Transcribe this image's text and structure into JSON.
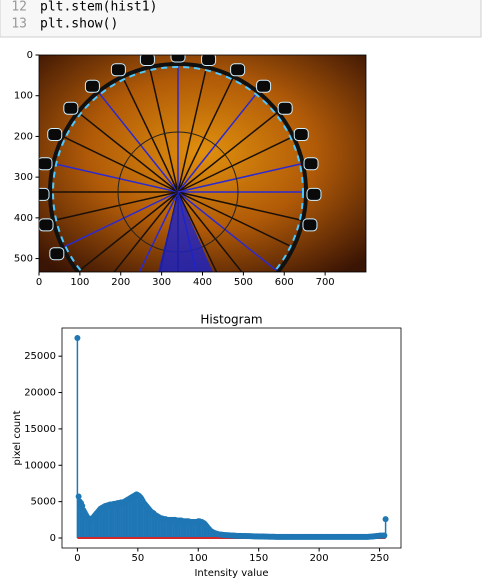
{
  "code": {
    "lines": [
      {
        "number": "12",
        "text": "plt.stem(hist1)"
      },
      {
        "number": "13",
        "text": "plt.show()"
      }
    ]
  },
  "chart_data": [
    {
      "type": "image",
      "xlim": [
        0,
        800
      ],
      "ylim": [
        533,
        0
      ],
      "xticks": [
        0,
        100,
        200,
        300,
        400,
        500,
        600,
        700
      ],
      "yticks": [
        0,
        100,
        200,
        300,
        400,
        500
      ]
    },
    {
      "type": "stem",
      "title": "Histogram",
      "x_label": "Intensity value",
      "y_label": "pixel count",
      "color": "#1f77b4",
      "baseline_color": "#d62728",
      "xlim": [
        -12.75,
        267.75
      ],
      "ylim": [
        -1375,
        28875
      ],
      "xticks": [
        0,
        50,
        100,
        150,
        200,
        250
      ],
      "yticks": [
        0,
        5000,
        10000,
        15000,
        20000,
        25000
      ],
      "x": [
        0,
        1,
        2,
        3,
        4,
        5,
        6,
        7,
        8,
        9,
        10,
        11,
        12,
        13,
        14,
        15,
        16,
        17,
        18,
        19,
        20,
        21,
        22,
        23,
        24,
        25,
        26,
        27,
        28,
        29,
        30,
        31,
        32,
        33,
        34,
        35,
        36,
        37,
        38,
        39,
        40,
        41,
        42,
        43,
        44,
        45,
        46,
        47,
        48,
        49,
        50,
        51,
        52,
        53,
        54,
        55,
        56,
        57,
        58,
        59,
        60,
        61,
        62,
        63,
        64,
        65,
        66,
        67,
        68,
        69,
        70,
        71,
        72,
        73,
        74,
        75,
        76,
        77,
        78,
        79,
        80,
        81,
        82,
        83,
        84,
        85,
        86,
        87,
        88,
        89,
        90,
        91,
        92,
        93,
        94,
        95,
        96,
        97,
        98,
        99,
        100,
        101,
        102,
        103,
        104,
        105,
        106,
        107,
        108,
        109,
        110,
        111,
        112,
        113,
        114,
        115,
        116,
        117,
        118,
        119,
        120,
        121,
        122,
        123,
        124,
        125,
        126,
        127,
        128,
        129,
        130,
        131,
        132,
        133,
        134,
        135,
        136,
        137,
        138,
        139,
        140,
        141,
        142,
        143,
        144,
        145,
        146,
        147,
        148,
        149,
        150,
        151,
        152,
        153,
        154,
        155,
        156,
        157,
        158,
        159,
        160,
        161,
        162,
        163,
        164,
        165,
        166,
        167,
        168,
        169,
        170,
        171,
        172,
        173,
        174,
        175,
        176,
        177,
        178,
        179,
        180,
        181,
        182,
        183,
        184,
        185,
        186,
        187,
        188,
        189,
        190,
        191,
        192,
        193,
        194,
        195,
        196,
        197,
        198,
        199,
        200,
        201,
        202,
        203,
        204,
        205,
        206,
        207,
        208,
        209,
        210,
        211,
        212,
        213,
        214,
        215,
        216,
        217,
        218,
        219,
        220,
        221,
        222,
        223,
        224,
        225,
        226,
        227,
        228,
        229,
        230,
        231,
        232,
        233,
        234,
        235,
        236,
        237,
        238,
        239,
        240,
        241,
        242,
        243,
        244,
        245,
        246,
        247,
        248,
        249,
        250,
        251,
        252,
        253,
        254,
        255
      ],
      "values": [
        27500,
        5700,
        5000,
        4800,
        4400,
        3800,
        3500,
        3200,
        2900,
        2700,
        2600,
        2600,
        2700,
        2800,
        3000,
        3200,
        3400,
        3600,
        3800,
        4000,
        4100,
        4200,
        4300,
        4400,
        4400,
        4500,
        4500,
        4600,
        4600,
        4600,
        4700,
        4700,
        4700,
        4800,
        4800,
        4800,
        4900,
        4900,
        4900,
        5000,
        5100,
        5200,
        5300,
        5400,
        5500,
        5600,
        5700,
        5800,
        5900,
        6000,
        5900,
        5800,
        5600,
        5400,
        5100,
        4800,
        4600,
        4400,
        4200,
        4000,
        3800,
        3600,
        3500,
        3400,
        3200,
        3100,
        3000,
        2900,
        2800,
        2700,
        2700,
        2600,
        2600,
        2600,
        2500,
        2500,
        2500,
        2500,
        2500,
        2500,
        2500,
        2500,
        2400,
        2400,
        2400,
        2400,
        2400,
        2300,
        2300,
        2300,
        2300,
        2300,
        2300,
        2200,
        2200,
        2200,
        2200,
        2200,
        2200,
        2200,
        2300,
        2300,
        2200,
        2200,
        2100,
        2000,
        1800,
        1600,
        1400,
        1200,
        1000,
        900,
        800,
        700,
        650,
        600,
        550,
        500,
        480,
        460,
        440,
        420,
        400,
        390,
        380,
        370,
        360,
        350,
        340,
        330,
        320,
        310,
        300,
        300,
        290,
        290,
        280,
        280,
        270,
        270,
        260,
        260,
        250,
        250,
        240,
        240,
        230,
        230,
        220,
        220,
        210,
        210,
        200,
        200,
        200,
        190,
        190,
        190,
        180,
        180,
        180,
        170,
        170,
        170,
        160,
        160,
        160,
        160,
        150,
        150,
        150,
        150,
        150,
        150,
        150,
        150,
        150,
        150,
        150,
        150,
        150,
        150,
        150,
        150,
        150,
        150,
        150,
        150,
        150,
        150,
        150,
        150,
        150,
        150,
        150,
        150,
        150,
        150,
        150,
        150,
        150,
        150,
        150,
        150,
        150,
        150,
        150,
        150,
        150,
        150,
        150,
        150,
        150,
        150,
        150,
        150,
        150,
        150,
        150,
        150,
        150,
        150,
        150,
        150,
        160,
        160,
        160,
        160,
        160,
        160,
        160,
        160,
        160,
        160,
        160,
        160,
        160,
        160,
        160,
        160,
        160,
        170,
        180,
        190,
        200,
        220,
        240,
        260,
        280,
        300,
        320,
        320,
        320,
        330,
        340,
        2600
      ]
    }
  ]
}
